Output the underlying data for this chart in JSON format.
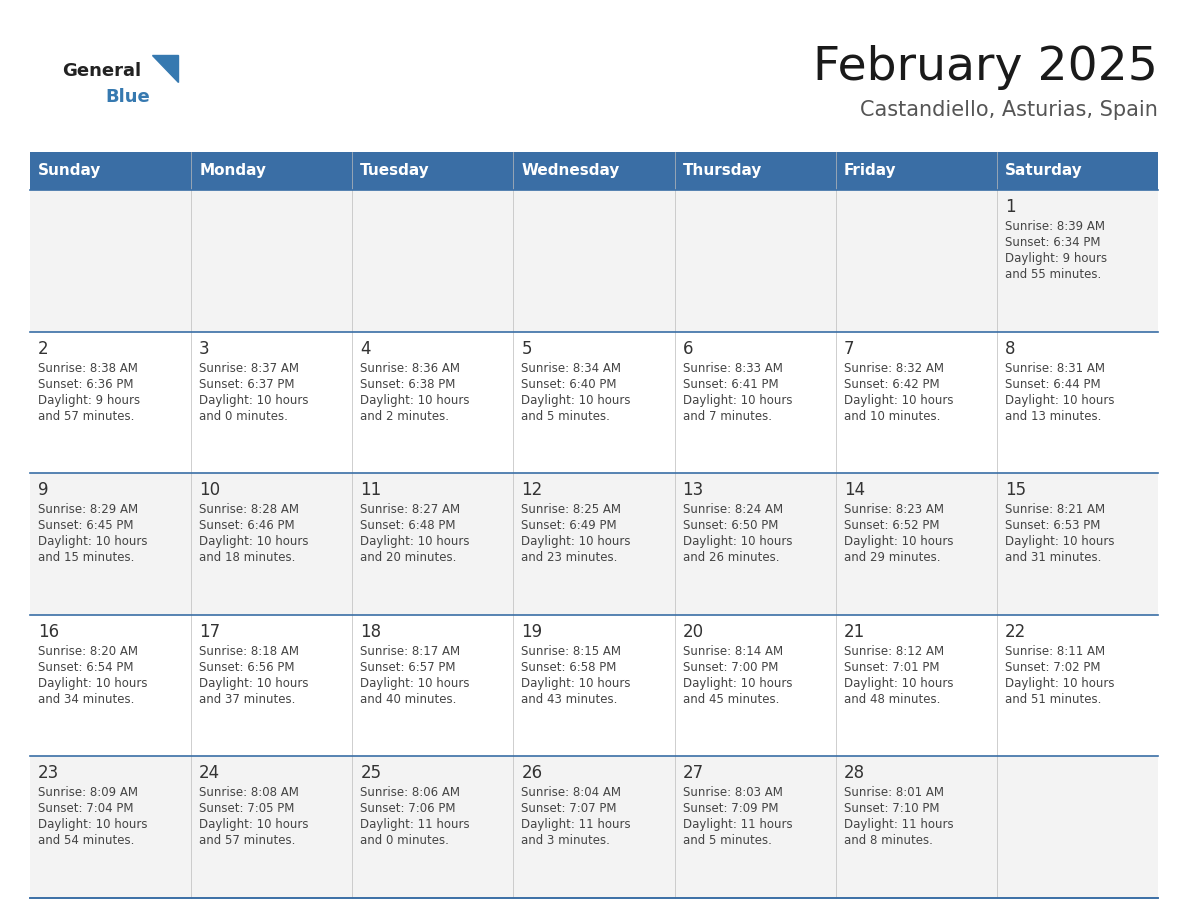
{
  "title": "February 2025",
  "subtitle": "Castandiello, Asturias, Spain",
  "header_bg_color": "#3a6ea5",
  "header_text_color": "#ffffff",
  "days_of_week": [
    "Sunday",
    "Monday",
    "Tuesday",
    "Wednesday",
    "Thursday",
    "Friday",
    "Saturday"
  ],
  "cell_border_color": "#3a6ea5",
  "day_number_color": "#333333",
  "cell_text_color": "#444444",
  "logo_general_color": "#222222",
  "logo_blue_color": "#3679b0",
  "row_colors": [
    "#f3f3f3",
    "#ffffff",
    "#f3f3f3",
    "#ffffff",
    "#f3f3f3"
  ],
  "calendar_data": [
    [
      null,
      null,
      null,
      null,
      null,
      null,
      {
        "day": 1,
        "sunrise": "8:39 AM",
        "sunset": "6:34 PM",
        "daylight_h": "9 hours",
        "daylight_m": "55 minutes"
      }
    ],
    [
      {
        "day": 2,
        "sunrise": "8:38 AM",
        "sunset": "6:36 PM",
        "daylight_h": "9 hours",
        "daylight_m": "57 minutes"
      },
      {
        "day": 3,
        "sunrise": "8:37 AM",
        "sunset": "6:37 PM",
        "daylight_h": "10 hours",
        "daylight_m": "0 minutes"
      },
      {
        "day": 4,
        "sunrise": "8:36 AM",
        "sunset": "6:38 PM",
        "daylight_h": "10 hours",
        "daylight_m": "2 minutes"
      },
      {
        "day": 5,
        "sunrise": "8:34 AM",
        "sunset": "6:40 PM",
        "daylight_h": "10 hours",
        "daylight_m": "5 minutes"
      },
      {
        "day": 6,
        "sunrise": "8:33 AM",
        "sunset": "6:41 PM",
        "daylight_h": "10 hours",
        "daylight_m": "7 minutes"
      },
      {
        "day": 7,
        "sunrise": "8:32 AM",
        "sunset": "6:42 PM",
        "daylight_h": "10 hours",
        "daylight_m": "10 minutes"
      },
      {
        "day": 8,
        "sunrise": "8:31 AM",
        "sunset": "6:44 PM",
        "daylight_h": "10 hours",
        "daylight_m": "13 minutes"
      }
    ],
    [
      {
        "day": 9,
        "sunrise": "8:29 AM",
        "sunset": "6:45 PM",
        "daylight_h": "10 hours",
        "daylight_m": "15 minutes"
      },
      {
        "day": 10,
        "sunrise": "8:28 AM",
        "sunset": "6:46 PM",
        "daylight_h": "10 hours",
        "daylight_m": "18 minutes"
      },
      {
        "day": 11,
        "sunrise": "8:27 AM",
        "sunset": "6:48 PM",
        "daylight_h": "10 hours",
        "daylight_m": "20 minutes"
      },
      {
        "day": 12,
        "sunrise": "8:25 AM",
        "sunset": "6:49 PM",
        "daylight_h": "10 hours",
        "daylight_m": "23 minutes"
      },
      {
        "day": 13,
        "sunrise": "8:24 AM",
        "sunset": "6:50 PM",
        "daylight_h": "10 hours",
        "daylight_m": "26 minutes"
      },
      {
        "day": 14,
        "sunrise": "8:23 AM",
        "sunset": "6:52 PM",
        "daylight_h": "10 hours",
        "daylight_m": "29 minutes"
      },
      {
        "day": 15,
        "sunrise": "8:21 AM",
        "sunset": "6:53 PM",
        "daylight_h": "10 hours",
        "daylight_m": "31 minutes"
      }
    ],
    [
      {
        "day": 16,
        "sunrise": "8:20 AM",
        "sunset": "6:54 PM",
        "daylight_h": "10 hours",
        "daylight_m": "34 minutes"
      },
      {
        "day": 17,
        "sunrise": "8:18 AM",
        "sunset": "6:56 PM",
        "daylight_h": "10 hours",
        "daylight_m": "37 minutes"
      },
      {
        "day": 18,
        "sunrise": "8:17 AM",
        "sunset": "6:57 PM",
        "daylight_h": "10 hours",
        "daylight_m": "40 minutes"
      },
      {
        "day": 19,
        "sunrise": "8:15 AM",
        "sunset": "6:58 PM",
        "daylight_h": "10 hours",
        "daylight_m": "43 minutes"
      },
      {
        "day": 20,
        "sunrise": "8:14 AM",
        "sunset": "7:00 PM",
        "daylight_h": "10 hours",
        "daylight_m": "45 minutes"
      },
      {
        "day": 21,
        "sunrise": "8:12 AM",
        "sunset": "7:01 PM",
        "daylight_h": "10 hours",
        "daylight_m": "48 minutes"
      },
      {
        "day": 22,
        "sunrise": "8:11 AM",
        "sunset": "7:02 PM",
        "daylight_h": "10 hours",
        "daylight_m": "51 minutes"
      }
    ],
    [
      {
        "day": 23,
        "sunrise": "8:09 AM",
        "sunset": "7:04 PM",
        "daylight_h": "10 hours",
        "daylight_m": "54 minutes"
      },
      {
        "day": 24,
        "sunrise": "8:08 AM",
        "sunset": "7:05 PM",
        "daylight_h": "10 hours",
        "daylight_m": "57 minutes"
      },
      {
        "day": 25,
        "sunrise": "8:06 AM",
        "sunset": "7:06 PM",
        "daylight_h": "11 hours",
        "daylight_m": "0 minutes"
      },
      {
        "day": 26,
        "sunrise": "8:04 AM",
        "sunset": "7:07 PM",
        "daylight_h": "11 hours",
        "daylight_m": "3 minutes"
      },
      {
        "day": 27,
        "sunrise": "8:03 AM",
        "sunset": "7:09 PM",
        "daylight_h": "11 hours",
        "daylight_m": "5 minutes"
      },
      {
        "day": 28,
        "sunrise": "8:01 AM",
        "sunset": "7:10 PM",
        "daylight_h": "11 hours",
        "daylight_m": "8 minutes"
      },
      null
    ]
  ]
}
